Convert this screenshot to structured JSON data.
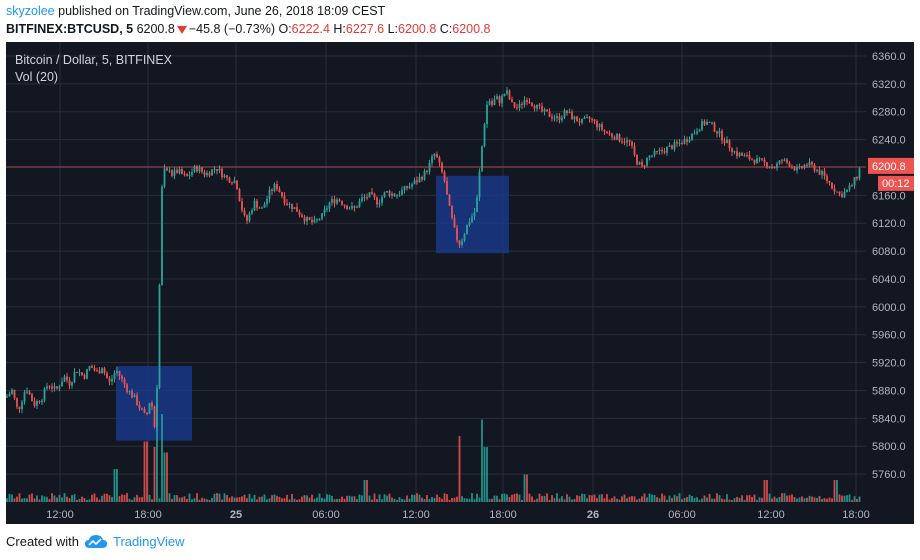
{
  "header": {
    "user": "skyzolee",
    "published_text": "published on TradingView.com, June 26, 2018 18:09 CEST",
    "symbol": "BITFINEX:BTCUSD, 5",
    "last": "6200.8",
    "change": "−45.8 (−0.73%)",
    "open_label": "O:",
    "open": "6222.4",
    "high_label": "H:",
    "high": "6227.6",
    "low_label": "L:",
    "low": "6200.8",
    "close_label": "C:",
    "close": "6200.8"
  },
  "footer": {
    "created_with": "Created with",
    "brand": "TradingView"
  },
  "colors": {
    "up": "#26a69a",
    "down": "#ef5350",
    "bg": "#131722",
    "grid": "#2a2e39",
    "box": "#1a3a8f",
    "price_line": "#ef5350"
  },
  "chart_data": {
    "type": "candlestick",
    "title": "Bitcoin / Dollar, 5, BITFINEX",
    "indicator": "Vol (20)",
    "price_tag": "6200.8",
    "countdown": "00:12",
    "ylim": [
      5720,
      6380
    ],
    "y_ticks": [
      "6360.0",
      "6320.0",
      "6280.0",
      "6240.0",
      "6200.0",
      "6160.0",
      "6120.0",
      "6080.0",
      "6040.0",
      "6000.0",
      "5960.0",
      "5920.0",
      "5880.0",
      "5840.0",
      "5800.0",
      "5760.0"
    ],
    "x_ticks": [
      "12:00",
      "18:00",
      "25",
      "06:00",
      "12:00",
      "18:00",
      "26",
      "06:00",
      "12:00",
      "18:00"
    ],
    "path_points": [
      [
        0,
        5870
      ],
      [
        6,
        5880
      ],
      [
        12,
        5850
      ],
      [
        20,
        5885
      ],
      [
        28,
        5860
      ],
      [
        36,
        5870
      ],
      [
        42,
        5890
      ],
      [
        50,
        5880
      ],
      [
        58,
        5900
      ],
      [
        64,
        5890
      ],
      [
        70,
        5910
      ],
      [
        78,
        5900
      ],
      [
        84,
        5915
      ],
      [
        92,
        5905
      ],
      [
        96,
        5915
      ],
      [
        100,
        5900
      ],
      [
        104,
        5890
      ],
      [
        110,
        5910
      ],
      [
        116,
        5895
      ],
      [
        122,
        5880
      ],
      [
        128,
        5870
      ],
      [
        132,
        5860
      ],
      [
        136,
        5850
      ],
      [
        140,
        5840
      ],
      [
        143,
        5860
      ],
      [
        145,
        5875
      ],
      [
        147,
        5840
      ],
      [
        149,
        5825
      ],
      [
        150,
        5830
      ],
      [
        152,
        5945
      ],
      [
        154,
        6060
      ],
      [
        156,
        6170
      ],
      [
        158,
        6200
      ],
      [
        160,
        6180
      ],
      [
        162,
        6205
      ],
      [
        166,
        6190
      ],
      [
        172,
        6195
      ],
      [
        180,
        6185
      ],
      [
        190,
        6200
      ],
      [
        200,
        6190
      ],
      [
        210,
        6200
      ],
      [
        220,
        6185
      ],
      [
        230,
        6180
      ],
      [
        235,
        6145
      ],
      [
        240,
        6120
      ],
      [
        248,
        6150
      ],
      [
        256,
        6140
      ],
      [
        264,
        6165
      ],
      [
        270,
        6175
      ],
      [
        280,
        6150
      ],
      [
        290,
        6140
      ],
      [
        300,
        6125
      ],
      [
        308,
        6120
      ],
      [
        316,
        6130
      ],
      [
        324,
        6150
      ],
      [
        332,
        6155
      ],
      [
        340,
        6145
      ],
      [
        348,
        6140
      ],
      [
        356,
        6155
      ],
      [
        364,
        6160
      ],
      [
        372,
        6150
      ],
      [
        380,
        6165
      ],
      [
        390,
        6160
      ],
      [
        400,
        6170
      ],
      [
        410,
        6180
      ],
      [
        418,
        6190
      ],
      [
        424,
        6205
      ],
      [
        428,
        6220
      ],
      [
        432,
        6210
      ],
      [
        434,
        6200
      ],
      [
        438,
        6185
      ],
      [
        442,
        6150
      ],
      [
        446,
        6125
      ],
      [
        450,
        6100
      ],
      [
        454,
        6090
      ],
      [
        458,
        6105
      ],
      [
        462,
        6120
      ],
      [
        466,
        6130
      ],
      [
        470,
        6140
      ],
      [
        474,
        6200
      ],
      [
        478,
        6260
      ],
      [
        482,
        6300
      ],
      [
        486,
        6290
      ],
      [
        490,
        6300
      ],
      [
        494,
        6295
      ],
      [
        500,
        6310
      ],
      [
        506,
        6290
      ],
      [
        512,
        6285
      ],
      [
        520,
        6300
      ],
      [
        528,
        6290
      ],
      [
        536,
        6280
      ],
      [
        544,
        6275
      ],
      [
        552,
        6270
      ],
      [
        560,
        6280
      ],
      [
        568,
        6270
      ],
      [
        576,
        6265
      ],
      [
        584,
        6270
      ],
      [
        592,
        6260
      ],
      [
        600,
        6250
      ],
      [
        608,
        6245
      ],
      [
        616,
        6240
      ],
      [
        624,
        6235
      ],
      [
        630,
        6210
      ],
      [
        636,
        6200
      ],
      [
        642,
        6215
      ],
      [
        650,
        6220
      ],
      [
        658,
        6225
      ],
      [
        666,
        6230
      ],
      [
        674,
        6235
      ],
      [
        680,
        6240
      ],
      [
        688,
        6250
      ],
      [
        694,
        6260
      ],
      [
        700,
        6265
      ],
      [
        706,
        6260
      ],
      [
        712,
        6250
      ],
      [
        718,
        6240
      ],
      [
        724,
        6230
      ],
      [
        730,
        6220
      ],
      [
        740,
        6215
      ],
      [
        750,
        6210
      ],
      [
        760,
        6205
      ],
      [
        768,
        6200
      ],
      [
        776,
        6210
      ],
      [
        784,
        6205
      ],
      [
        792,
        6195
      ],
      [
        800,
        6205
      ],
      [
        808,
        6200
      ],
      [
        816,
        6190
      ],
      [
        822,
        6180
      ],
      [
        828,
        6170
      ],
      [
        834,
        6160
      ],
      [
        840,
        6165
      ],
      [
        846,
        6175
      ],
      [
        852,
        6190
      ],
      [
        854,
        6200
      ]
    ],
    "volume_spikes": [
      [
        140,
        0.55
      ],
      [
        148,
        0.5
      ],
      [
        152,
        0.9
      ],
      [
        156,
        0.8
      ],
      [
        160,
        0.45
      ],
      [
        454,
        0.6
      ],
      [
        476,
        0.75
      ],
      [
        480,
        0.5
      ],
      [
        110,
        0.3
      ],
      [
        360,
        0.2
      ],
      [
        520,
        0.25
      ],
      [
        760,
        0.2
      ],
      [
        830,
        0.2
      ]
    ],
    "highlight_boxes": [
      {
        "name": "box-left",
        "t0": 110,
        "t1": 186,
        "p_hi": 5915,
        "p_lo": 5808
      },
      {
        "name": "box-mid",
        "t0": 430,
        "t1": 503,
        "p_hi": 6188,
        "p_lo": 6077
      }
    ]
  }
}
